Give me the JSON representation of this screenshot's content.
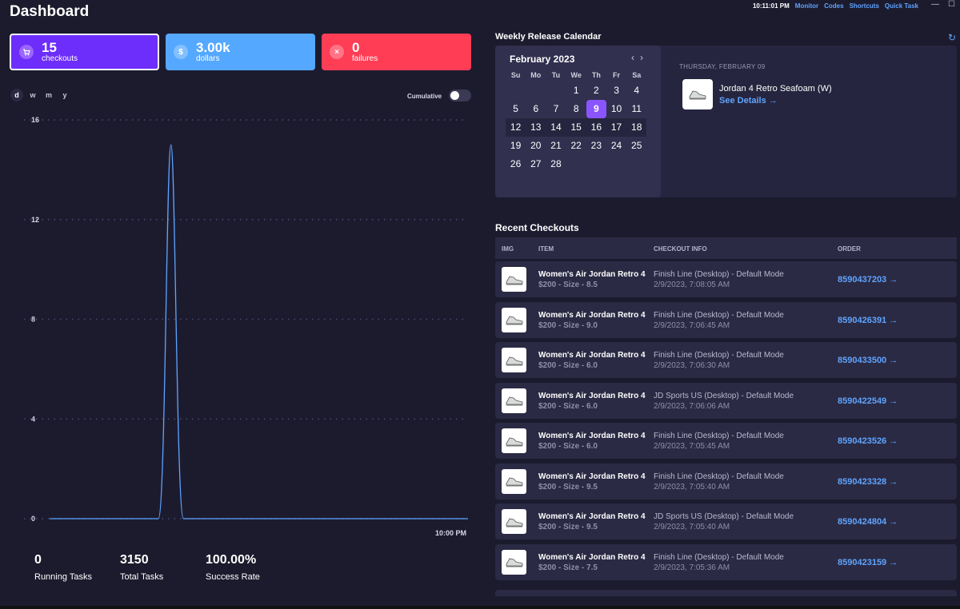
{
  "app": {
    "title": "Dashboard",
    "time": "10:11:01 PM",
    "nav": [
      "Monitor",
      "Codes",
      "Shortcuts",
      "Quick Task"
    ],
    "window_controls": [
      "—",
      "☐"
    ]
  },
  "stats": {
    "checkouts": {
      "value": "15",
      "label": "checkouts"
    },
    "dollars": {
      "value": "3.00k",
      "label": "dollars",
      "icon": "$"
    },
    "failures": {
      "value": "0",
      "label": "failures",
      "icon": "×"
    }
  },
  "range_tabs": [
    "d",
    "w",
    "m",
    "y"
  ],
  "cumulative_label": "Cumulative",
  "chart_data": {
    "type": "line",
    "y_ticks": [
      "16",
      "12",
      "8",
      "4",
      "0"
    ],
    "ylim": [
      0,
      16
    ],
    "x_label": "10:00 PM",
    "series": [
      {
        "x": [
          0,
          0.26,
          0.29,
          0.32,
          1
        ],
        "values": [
          0,
          0,
          15,
          0,
          0
        ]
      }
    ],
    "grid": true,
    "color": "#5ea4ff"
  },
  "bottom_stats": [
    {
      "value": "0",
      "label": "Running Tasks"
    },
    {
      "value": "3150",
      "label": "Total Tasks"
    },
    {
      "value": "100.00%",
      "label": "Success Rate"
    }
  ],
  "calendar": {
    "section_title": "Weekly Release Calendar",
    "month": "February 2023",
    "dow": [
      "Su",
      "Mo",
      "Tu",
      "We",
      "Th",
      "Fr",
      "Sa"
    ],
    "weeks": [
      [
        "",
        "",
        "",
        "1",
        "2",
        "3",
        "4"
      ],
      [
        "5",
        "6",
        "7",
        "8",
        "9",
        "10",
        "11"
      ],
      [
        "12",
        "13",
        "14",
        "15",
        "16",
        "17",
        "18"
      ],
      [
        "19",
        "20",
        "21",
        "22",
        "23",
        "24",
        "25"
      ],
      [
        "26",
        "27",
        "28",
        "",
        "",
        "",
        ""
      ]
    ],
    "selected": "9",
    "release_date": "THURSDAY, FEBRUARY 09",
    "release_name": "Jordan 4 Retro Seafoam (W)",
    "release_link": "See Details →"
  },
  "checkouts": {
    "section_title": "Recent Checkouts",
    "headers": [
      "IMG",
      "ITEM",
      "CHECKOUT INFO",
      "ORDER"
    ],
    "rows": [
      {
        "item": "Women's Air Jordan Retro 4",
        "sub": "$200 - Size - 8.5",
        "info": "Finish Line (Desktop) - Default Mode",
        "time": "2/9/2023, 7:08:05 AM",
        "order": "8590437203 →"
      },
      {
        "item": "Women's Air Jordan Retro 4",
        "sub": "$200 - Size - 9.0",
        "info": "Finish Line (Desktop) - Default Mode",
        "time": "2/9/2023, 7:06:45 AM",
        "order": "8590426391 →"
      },
      {
        "item": "Women's Air Jordan Retro 4",
        "sub": "$200 - Size - 6.0",
        "info": "Finish Line (Desktop) - Default Mode",
        "time": "2/9/2023, 7:06:30 AM",
        "order": "8590433500 →"
      },
      {
        "item": "Women's Air Jordan Retro 4",
        "sub": "$200 - Size - 6.0",
        "info": "JD Sports US (Desktop) - Default Mode",
        "time": "2/9/2023, 7:06:06 AM",
        "order": "8590422549 →"
      },
      {
        "item": "Women's Air Jordan Retro 4",
        "sub": "$200 - Size - 6.0",
        "info": "Finish Line (Desktop) - Default Mode",
        "time": "2/9/2023, 7:05:45 AM",
        "order": "8590423526 →"
      },
      {
        "item": "Women's Air Jordan Retro 4",
        "sub": "$200 - Size - 9.5",
        "info": "Finish Line (Desktop) - Default Mode",
        "time": "2/9/2023, 7:05:40 AM",
        "order": "8590423328 →"
      },
      {
        "item": "Women's Air Jordan Retro 4",
        "sub": "$200 - Size - 9.5",
        "info": "JD Sports US (Desktop) - Default Mode",
        "time": "2/9/2023, 7:05:40 AM",
        "order": "8590424804 →"
      },
      {
        "item": "Women's Air Jordan Retro 4",
        "sub": "$200 - Size - 7.5",
        "info": "Finish Line (Desktop) - Default Mode",
        "time": "2/9/2023, 7:05:36 AM",
        "order": "8590423159 →"
      }
    ]
  },
  "colors": {
    "background": "#1c1b2e",
    "accent": "#6d2dfa",
    "link": "#5ea4ff",
    "danger": "#ff3d55"
  }
}
